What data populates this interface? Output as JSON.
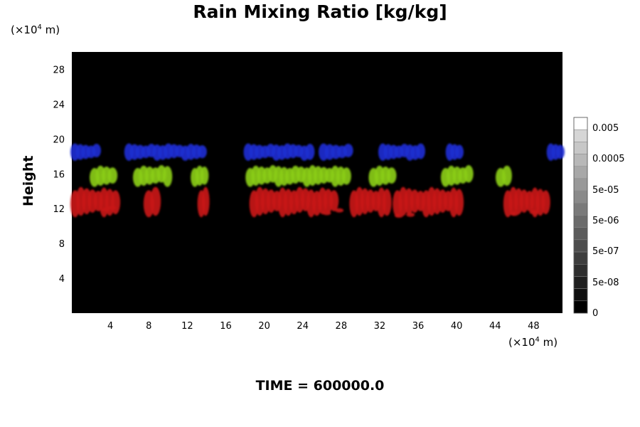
{
  "chart_data": {
    "type": "heatmap",
    "title": "Rain Mixing Ratio [kg/kg]",
    "ylabel": "Height",
    "x_unit": "(×10⁴ m)",
    "y_unit": "(×10⁴ m)",
    "x_unit_prefix": "(×10",
    "x_unit_exp": "4",
    "x_unit_suffix": " m)",
    "xlim": [
      0,
      51
    ],
    "ylim": [
      0,
      30
    ],
    "x_ticks": [
      4,
      8,
      12,
      16,
      20,
      24,
      28,
      32,
      36,
      40,
      44,
      48
    ],
    "y_ticks": [
      4,
      8,
      12,
      16,
      20,
      24,
      28
    ],
    "background_color": "#000000",
    "layers": [
      {
        "color": "#1c2ed0",
        "y_range": [
          17.5,
          19.5
        ]
      },
      {
        "color": "#8acc18",
        "y_range": [
          14.5,
          17.0
        ]
      },
      {
        "color": "#c81414",
        "y_range": [
          11.0,
          14.5
        ]
      }
    ],
    "colorbar": {
      "labels": [
        "0.005",
        "0.0005",
        "5e-05",
        "5e-06",
        "5e-07",
        "5e-08",
        "0"
      ],
      "levels": 16
    }
  },
  "footer": {
    "time_label": "TIME = 600000.0"
  }
}
